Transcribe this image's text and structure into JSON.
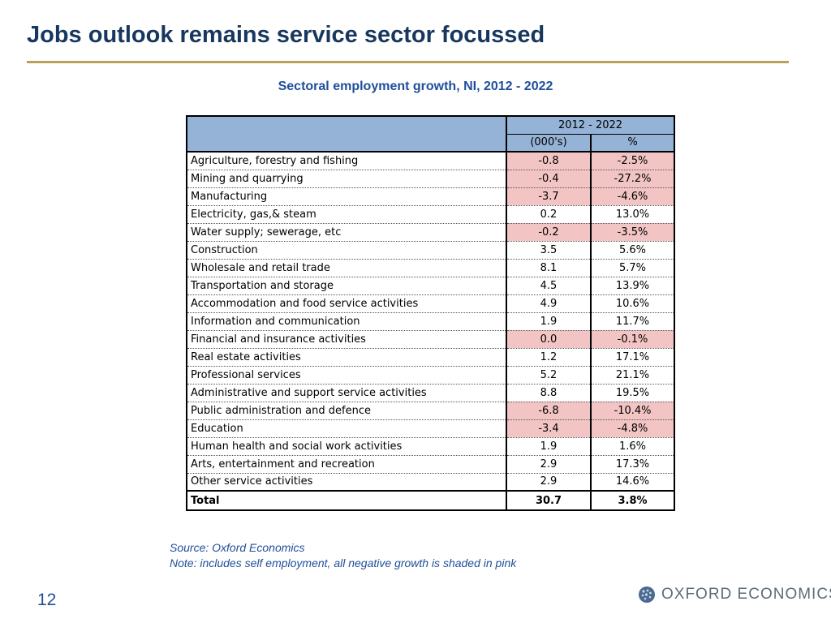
{
  "slide": {
    "title": "Jobs outlook remains service sector focussed",
    "page_number": "12"
  },
  "table": {
    "title": "Sectoral employment growth, NI, 2012 - 2022",
    "period_header": "2012 - 2022",
    "col1_header": "(000's)",
    "col2_header": "%",
    "negative_shade_color": "#f2c4c4",
    "header_color": "#95b3d7",
    "rows": [
      {
        "sector": "Agriculture, forestry and fishing",
        "jobs": "-0.8",
        "pct": "-2.5%"
      },
      {
        "sector": "Mining and quarrying",
        "jobs": "-0.4",
        "pct": "-27.2%"
      },
      {
        "sector": "Manufacturing",
        "jobs": "-3.7",
        "pct": "-4.6%"
      },
      {
        "sector": "Electricity, gas,& steam",
        "jobs": "0.2",
        "pct": "13.0%"
      },
      {
        "sector": "Water supply; sewerage, etc",
        "jobs": "-0.2",
        "pct": "-3.5%"
      },
      {
        "sector": "Construction",
        "jobs": "3.5",
        "pct": "5.6%"
      },
      {
        "sector": "Wholesale and retail trade",
        "jobs": "8.1",
        "pct": "5.7%"
      },
      {
        "sector": "Transportation and storage",
        "jobs": "4.5",
        "pct": "13.9%"
      },
      {
        "sector": "Accommodation and food service activities",
        "jobs": "4.9",
        "pct": "10.6%"
      },
      {
        "sector": "Information and communication",
        "jobs": "1.9",
        "pct": "11.7%"
      },
      {
        "sector": "Financial and insurance activities",
        "jobs": "0.0",
        "pct": "-0.1%"
      },
      {
        "sector": "Real estate activities",
        "jobs": "1.2",
        "pct": "17.1%"
      },
      {
        "sector": "Professional services",
        "jobs": "5.2",
        "pct": "21.1%"
      },
      {
        "sector": "Administrative and support service activities",
        "jobs": "8.8",
        "pct": "19.5%"
      },
      {
        "sector": "Public administration and defence",
        "jobs": "-6.8",
        "pct": "-10.4%"
      },
      {
        "sector": "Education",
        "jobs": "-3.4",
        "pct": "-4.8%"
      },
      {
        "sector": "Human health and social work activities",
        "jobs": "1.9",
        "pct": "1.6%"
      },
      {
        "sector": "Arts, entertainment and recreation",
        "jobs": "2.9",
        "pct": "17.3%"
      },
      {
        "sector": "Other service activities",
        "jobs": "2.9",
        "pct": "14.6%"
      }
    ],
    "total": {
      "sector": "Total",
      "jobs": "30.7",
      "pct": "3.8%"
    }
  },
  "notes": {
    "source": "Source: Oxford Economics",
    "note": "Note: includes self employment, all negative growth is shaded in pink"
  },
  "logo": {
    "text": "OXFORD ECONOMICS",
    "icon": "globe-icon",
    "color": "#5f6b77"
  }
}
